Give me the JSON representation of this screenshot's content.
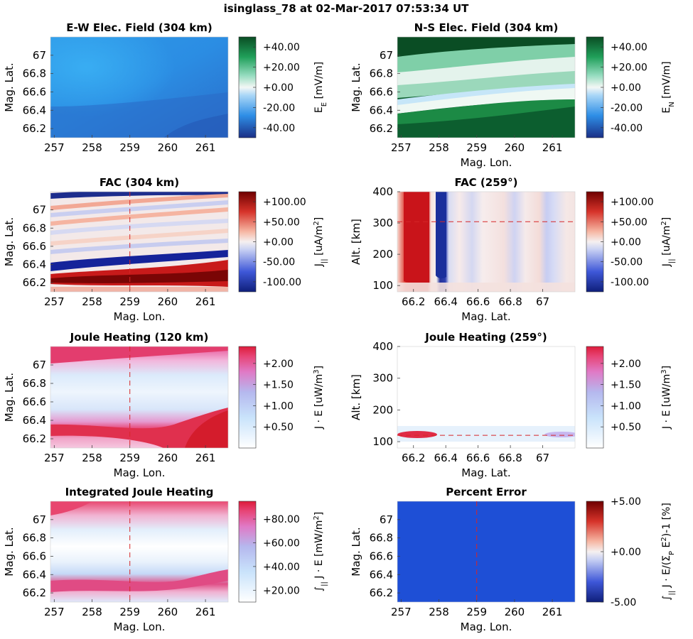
{
  "figure": {
    "title": "isinglass_78 at 02-Mar-2017 07:53:34 UT",
    "colors": {
      "blue_dark": "#1f3a93",
      "blue_light": "#3aa8f0",
      "green_dark": "#0b5e2e",
      "red_dark": "#8a0a0a",
      "red_mid": "#d42828",
      "pink": "#e6407a",
      "cut_line": "#d62728",
      "error_fill": "#1e4fd6"
    }
  },
  "chart_data": [
    {
      "type": "heatmap",
      "title": "E-W Elec. Field (304 km)",
      "xlabel": "",
      "ylabel": "Mag. Lat.",
      "xticks": [
        "257",
        "258",
        "259",
        "260",
        "261"
      ],
      "yticks": [
        "67",
        "66.8",
        "66.6",
        "66.4",
        "66.2"
      ],
      "xlim": [
        256.9,
        261.6
      ],
      "ylim": [
        66.1,
        67.2
      ],
      "colormap": "blue-white-green",
      "colorbar": {
        "label": "E",
        "sub": "E",
        "unit": " [mV/m]",
        "ticks": [
          "+40.00",
          "+20.00",
          "+0.00",
          "-20.00",
          "-40.00"
        ],
        "range": [
          -50,
          50
        ]
      },
      "cut_line": null
    },
    {
      "type": "heatmap",
      "title": "N-S Elec. Field (304 km)",
      "xlabel": "Mag. Lon.",
      "ylabel": "Mag. Lat.",
      "xticks": [
        "257",
        "258",
        "259",
        "260",
        "261"
      ],
      "yticks": [
        "67",
        "66.8",
        "66.6",
        "66.4",
        "66.2"
      ],
      "xlim": [
        256.9,
        261.6
      ],
      "ylim": [
        66.1,
        67.2
      ],
      "colormap": "blue-white-green",
      "colorbar": {
        "label": "E",
        "sub": "N",
        "unit": " [mV/m]",
        "ticks": [
          "+40.00",
          "+20.00",
          "+0.00",
          "-20.00",
          "-40.00"
        ],
        "range": [
          -50,
          50
        ]
      },
      "cut_line": null
    },
    {
      "type": "heatmap",
      "title": "FAC (304 km)",
      "xlabel": "Mag. Lon.",
      "ylabel": "Mag. Lat.",
      "xticks": [
        "257",
        "258",
        "259",
        "260",
        "261"
      ],
      "yticks": [
        "67",
        "66.8",
        "66.6",
        "66.4",
        "66.2"
      ],
      "xlim": [
        256.9,
        261.6
      ],
      "ylim": [
        66.1,
        67.2
      ],
      "colormap": "blue-white-red",
      "colorbar": {
        "label": "J",
        "sub": "||",
        "unit": " [uA/m",
        "sup": "2",
        "unit2": "]",
        "ticks": [
          "+100.00",
          "+50.00",
          "+0.00",
          "-50.00",
          "-100.00"
        ],
        "range": [
          -125,
          125
        ]
      },
      "cut_line": {
        "orientation": "vertical",
        "value": 259
      }
    },
    {
      "type": "heatmap",
      "title": "FAC (259°)",
      "xlabel": "Mag. Lat.",
      "ylabel": "Alt. [km]",
      "xticks": [
        "66.2",
        "66.4",
        "66.6",
        "66.8",
        "67"
      ],
      "yticks": [
        "400",
        "300",
        "200",
        "100"
      ],
      "xlim": [
        66.1,
        67.2
      ],
      "ylim": [
        80,
        400
      ],
      "colormap": "blue-white-red",
      "colorbar": {
        "label": "J",
        "sub": "||",
        "unit": " [uA/m",
        "sup": "2",
        "unit2": "]",
        "ticks": [
          "+100.00",
          "+50.00",
          "+0.00",
          "-50.00",
          "-100.00"
        ],
        "range": [
          -125,
          125
        ]
      },
      "cut_line": {
        "orientation": "horizontal",
        "value": 304
      }
    },
    {
      "type": "heatmap",
      "title": "Joule Heating (120 km)",
      "xlabel": "Mag. Lon.",
      "ylabel": "Mag. Lat.",
      "xticks": [
        "257",
        "258",
        "259",
        "260",
        "261"
      ],
      "yticks": [
        "67",
        "66.8",
        "66.6",
        "66.4",
        "66.2"
      ],
      "xlim": [
        256.9,
        261.6
      ],
      "ylim": [
        66.1,
        67.2
      ],
      "colormap": "white-blue-pink-red",
      "colorbar": {
        "label": "J · E [uW/m",
        "sup": "3",
        "unit2": "]",
        "ticks": [
          "+2.00",
          "+1.50",
          "+1.00",
          "+0.50"
        ],
        "range": [
          0,
          2.4
        ]
      },
      "cut_line": {
        "orientation": "vertical",
        "value": 259
      }
    },
    {
      "type": "heatmap",
      "title": "Joule Heating (259°)",
      "xlabel": "Mag. Lat.",
      "ylabel": "Alt. [km]",
      "xticks": [
        "66.2",
        "66.4",
        "66.6",
        "66.8",
        "67"
      ],
      "yticks": [
        "400",
        "300",
        "200",
        "100"
      ],
      "xlim": [
        66.1,
        67.2
      ],
      "ylim": [
        80,
        400
      ],
      "colormap": "white-blue-pink-red",
      "colorbar": {
        "label": "J · E [uW/m",
        "sup": "3",
        "unit2": "]",
        "ticks": [
          "+2.00",
          "+1.50",
          "+1.00",
          "+0.50"
        ],
        "range": [
          0,
          2.4
        ]
      },
      "cut_line": {
        "orientation": "horizontal",
        "value": 120
      }
    },
    {
      "type": "heatmap",
      "title": "Integrated Joule Heating",
      "xlabel": "Mag. Lon.",
      "ylabel": "Mag. Lat.",
      "xticks": [
        "257",
        "258",
        "259",
        "260",
        "261"
      ],
      "yticks": [
        "67",
        "66.8",
        "66.6",
        "66.4",
        "66.2"
      ],
      "xlim": [
        256.9,
        261.6
      ],
      "ylim": [
        66.1,
        67.2
      ],
      "colormap": "white-blue-pink-red",
      "colorbar": {
        "label": "∫",
        "sub": "||",
        "label2": " J · E [mW/m",
        "sup": "2",
        "unit2": "]",
        "ticks": [
          "+80.00",
          "+60.00",
          "+40.00",
          "+20.00"
        ],
        "range": [
          10,
          95
        ]
      },
      "cut_line": {
        "orientation": "vertical",
        "value": 259
      }
    },
    {
      "type": "heatmap",
      "title": "Percent Error",
      "xlabel": "Mag. Lon.",
      "ylabel": "Mag. Lat.",
      "xticks": [
        "257",
        "258",
        "259",
        "260",
        "261"
      ],
      "yticks": [
        "67",
        "66.8",
        "66.6",
        "66.4",
        "66.2"
      ],
      "xlim": [
        256.9,
        261.6
      ],
      "ylim": [
        66.1,
        67.2
      ],
      "colormap": "blue-white-red",
      "colorbar": {
        "label": "∫",
        "sub": "||",
        "label2": " J · E/(Σ",
        "sub2": "P",
        "label3": " E",
        "sup": "2",
        "unit2": ")-1 [%]",
        "ticks": [
          "+5.00",
          "+0.00",
          "-5.00"
        ],
        "range": [
          -5,
          5
        ]
      },
      "cut_line": {
        "orientation": "vertical",
        "value": 259
      }
    }
  ]
}
